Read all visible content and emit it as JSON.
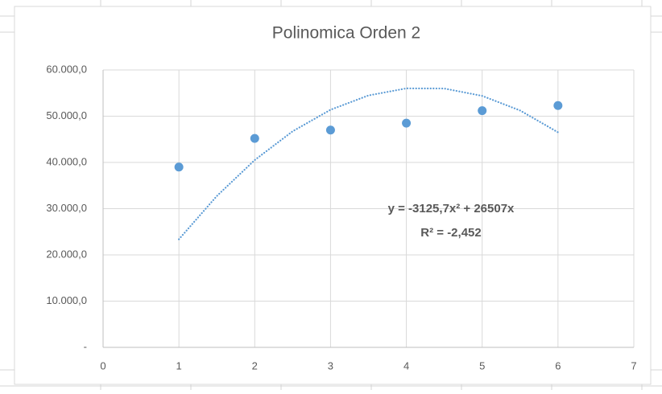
{
  "chart_data": {
    "type": "scatter",
    "title": "Polinomica Orden 2",
    "annotations": [
      "y = -3125,7x² + 26507x",
      "R² = -2,452"
    ],
    "series": [
      {
        "color": "#5b9bd5",
        "x": [
          1,
          2,
          3,
          4,
          5,
          6
        ],
        "values": [
          39000,
          45200,
          47000,
          48500,
          51200,
          52300
        ]
      },
      {
        "color": "#5b9bd5",
        "style": "dotted",
        "x": [
          1,
          1.5,
          2,
          2.5,
          3,
          3.5,
          4,
          4.5,
          5,
          5.5,
          6
        ],
        "values": [
          23381.3,
          32727.7,
          40511.2,
          46731.9,
          51389.7,
          54484.7,
          56016.8,
          55986.1,
          54392.5,
          51236.1,
          46516.8
        ]
      }
    ],
    "xlim": [
      0,
      7
    ],
    "xticks": [
      0,
      1,
      2,
      3,
      4,
      5,
      6,
      7
    ],
    "ylim": [
      0,
      60000
    ],
    "yticks": [
      {
        "value": 0,
        "label": "-"
      },
      {
        "value": 10000,
        "label": "10.000,0"
      },
      {
        "value": 20000,
        "label": "20.000,0"
      },
      {
        "value": 30000,
        "label": "30.000,0"
      },
      {
        "value": 40000,
        "label": "40.000,0"
      },
      {
        "value": 50000,
        "label": "50.000,0"
      },
      {
        "value": 60000,
        "label": "60.000,0"
      }
    ],
    "grid": true
  }
}
